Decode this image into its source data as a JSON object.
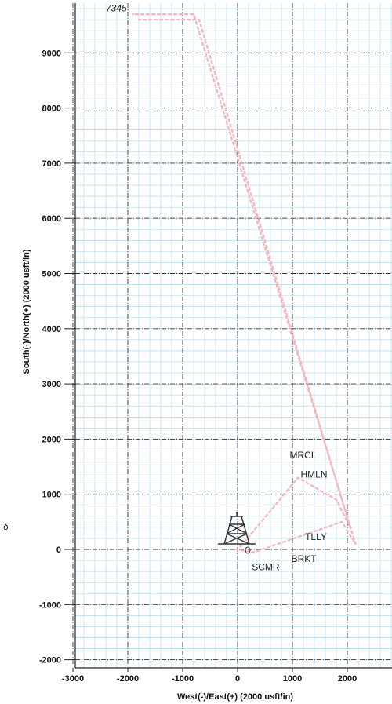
{
  "chart_data": {
    "type": "line",
    "xlabel": "West(-)/East(+) (2000 usft/in)",
    "ylabel": "South(-)/North(+) (2000 usft/in)",
    "xlim": [
      -3000,
      2800
    ],
    "ylim": [
      -2100,
      9900
    ],
    "x_ticks": [
      -3000,
      -2000,
      -1000,
      0,
      1000,
      2000
    ],
    "y_ticks": [
      -2000,
      -1000,
      0,
      1000,
      2000,
      3000,
      4000,
      5000,
      6000,
      7000,
      8000,
      9000
    ],
    "grid": true,
    "grid_color": "#a8d4ec",
    "grid_major_color": "#333333",
    "series": [
      {
        "color": "#f2b6bf",
        "x": [
          -50,
          300,
          1900,
          2150,
          -800,
          -1900
        ],
        "y": [
          0,
          -50,
          500,
          100,
          9700,
          9700
        ]
      },
      {
        "color": "#f2b6bf",
        "x": [
          50,
          600,
          1100,
          1800,
          2050,
          -700,
          -1800
        ],
        "y": [
          50,
          700,
          1300,
          900,
          400,
          9600,
          9600
        ]
      }
    ],
    "annotations": [
      {
        "text": "MRCL",
        "x": 950,
        "y": 1650
      },
      {
        "text": "HMLN",
        "x": 1150,
        "y": 1300
      },
      {
        "text": "TLLY",
        "x": 1230,
        "y": 170
      },
      {
        "text": "BRKT",
        "x": 980,
        "y": -230
      },
      {
        "text": "SCMR",
        "x": 260,
        "y": -380
      },
      {
        "text": "7345",
        "x": -2400,
        "y": 9750
      }
    ]
  },
  "labels": {
    "margin_mark": "δ"
  },
  "icons": {
    "rig": "drilling-rig-icon"
  }
}
